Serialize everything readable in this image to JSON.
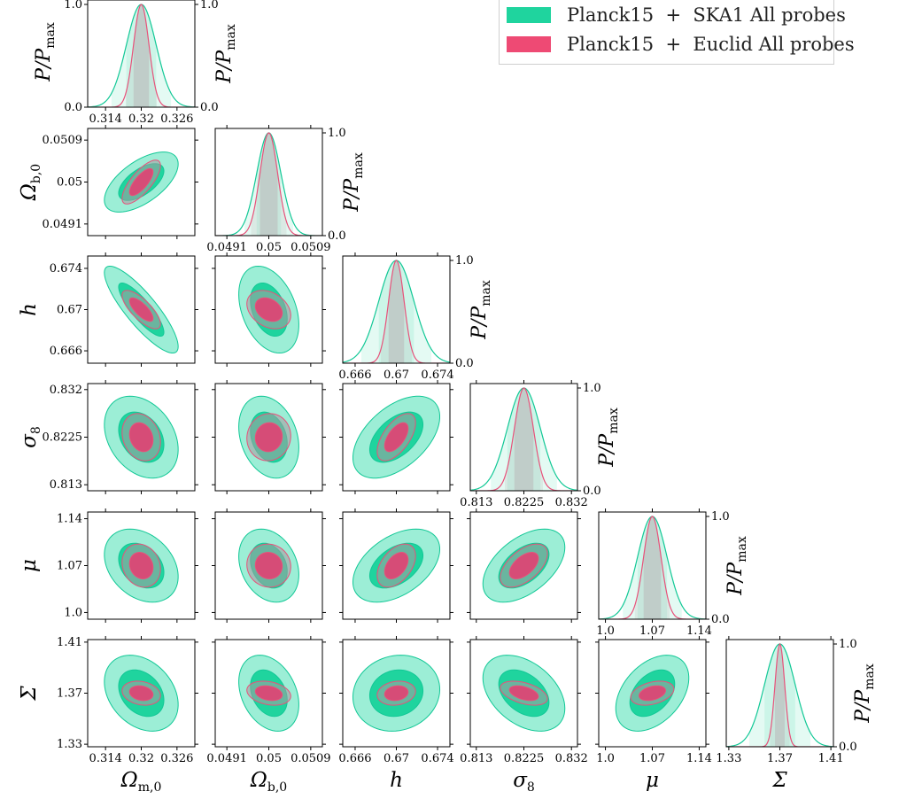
{
  "chart_data": {
    "type": "triangle-contour",
    "params": [
      {
        "symbol": "Ω",
        "sub": "m,0",
        "fid": 0.32,
        "range": [
          0.311,
          0.329
        ],
        "ticks": [
          0.314,
          0.32,
          0.326
        ],
        "tick_labels": [
          "0.314",
          "0.32",
          "0.326"
        ]
      },
      {
        "symbol": "Ω",
        "sub": "b,0",
        "fid": 0.05,
        "range": [
          0.04885,
          0.05115
        ],
        "ticks": [
          0.0491,
          0.05,
          0.0509
        ],
        "tick_labels": [
          "0.0491",
          "0.05",
          "0.0509"
        ]
      },
      {
        "symbol": "h",
        "sub": "",
        "fid": 0.67,
        "range": [
          0.6648,
          0.6752
        ],
        "ticks": [
          0.666,
          0.67,
          0.674
        ],
        "tick_labels": [
          "0.666",
          "0.67",
          "0.674"
        ]
      },
      {
        "symbol": "σ",
        "sub": "8",
        "fid": 0.8225,
        "range": [
          0.8118,
          0.8332
        ],
        "ticks": [
          0.813,
          0.8225,
          0.832
        ],
        "tick_labels": [
          "0.813",
          "0.8225",
          "0.832"
        ]
      },
      {
        "symbol": "μ",
        "sub": "",
        "fid": 1.07,
        "range": [
          0.99,
          1.15
        ],
        "ticks": [
          1.0,
          1.07,
          1.14
        ],
        "tick_labels": [
          "1.0",
          "1.07",
          "1.14"
        ]
      },
      {
        "symbol": "Σ",
        "sub": "",
        "fid": 1.37,
        "range": [
          1.328,
          1.412
        ],
        "ticks": [
          1.33,
          1.37,
          1.41
        ],
        "tick_labels": [
          "1.33",
          "1.37",
          "1.41"
        ]
      }
    ],
    "diag_ylabel": {
      "main": "P/P",
      "sub": "max"
    },
    "diag_ticks": [
      {
        "value": 0.0,
        "label": "0.0"
      },
      {
        "value": 1.0,
        "label": "1.0"
      }
    ],
    "series": [
      {
        "name": "Planck15  +  SKA1 All probes",
        "legend": "Planck15  +  SKA1 All probes",
        "color": "#0fd39c",
        "fill_1sigma": "#1fd49e",
        "fill_2sigma": "#9ceed6",
        "edge": "#12c896",
        "sigma": [
          0.0025,
          0.00026,
          0.0017,
          0.0033,
          0.022,
          0.012
        ]
      },
      {
        "name": "Planck15  +  Euclid All probes",
        "legend": "Planck15  +  Euclid All probes",
        "color": "#ee4a74",
        "fill_1sigma": "#d64c77",
        "fill_2sigma": "#b5a0a8",
        "edge": "#e8517a",
        "sigma": [
          0.0013,
          0.00019,
          0.00075,
          0.0019,
          0.013,
          0.0038
        ]
      }
    ],
    "correlations": {
      "SKA1": [
        [
          0,
          1,
          0.6
        ],
        [
          0,
          2,
          -0.85
        ],
        [
          0,
          3,
          -0.3
        ],
        [
          0,
          4,
          -0.3
        ],
        [
          0,
          5,
          -0.3
        ],
        [
          1,
          2,
          -0.35
        ],
        [
          1,
          3,
          -0.25
        ],
        [
          1,
          4,
          -0.25
        ],
        [
          1,
          5,
          -0.3
        ],
        [
          2,
          3,
          0.5
        ],
        [
          2,
          4,
          0.45
        ],
        [
          2,
          5,
          0.1
        ],
        [
          3,
          4,
          0.5
        ],
        [
          3,
          5,
          -0.4
        ],
        [
          4,
          5,
          0.4
        ]
      ],
      "Euclid": [
        [
          0,
          1,
          0.75
        ],
        [
          0,
          2,
          -0.75
        ],
        [
          0,
          3,
          -0.2
        ],
        [
          0,
          4,
          -0.15
        ],
        [
          0,
          5,
          -0.2
        ],
        [
          1,
          2,
          -0.3
        ],
        [
          1,
          3,
          0.05
        ],
        [
          1,
          4,
          -0.05
        ],
        [
          1,
          5,
          -0.25
        ],
        [
          2,
          3,
          0.6
        ],
        [
          2,
          4,
          0.45
        ],
        [
          2,
          5,
          0.15
        ],
        [
          3,
          4,
          0.55
        ],
        [
          3,
          5,
          -0.45
        ],
        [
          4,
          5,
          0.35
        ]
      ]
    }
  }
}
